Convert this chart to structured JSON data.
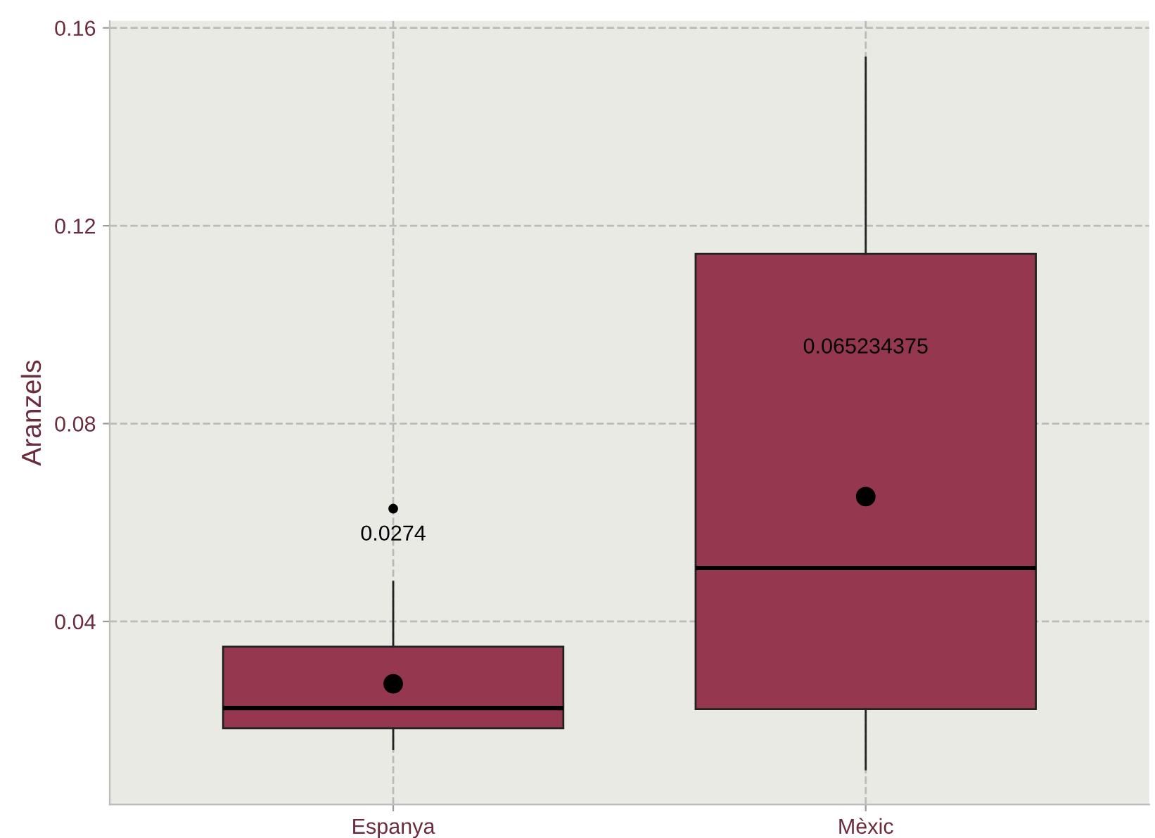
{
  "chart_data": {
    "type": "box",
    "ylabel": "Aranzels",
    "categories": [
      "Espanya",
      "Mèxic"
    ],
    "series": [
      {
        "color": "#963750",
        "boxes": [
          {
            "low": 0.0142,
            "q1": 0.0184,
            "median": 0.0225,
            "q3": 0.0349,
            "high": 0.048,
            "mean": 0.0274,
            "outliers": [
              0.0628
            ]
          },
          {
            "low": 0.0101,
            "q1": 0.0223,
            "median": 0.0508,
            "q3": 0.1143,
            "high": 0.154,
            "mean": 0.065234375
          }
        ]
      }
    ],
    "annotations": [
      "0.0274",
      "0.065234375"
    ],
    "ylim": [
      0.003,
      0.1614
    ],
    "yticks": [
      {
        "value": 0.04,
        "label": "0.04"
      },
      {
        "value": 0.08,
        "label": "0.08"
      },
      {
        "value": 0.12,
        "label": "0.12"
      },
      {
        "value": 0.16,
        "label": "0.16"
      }
    ],
    "grid": true,
    "legend": false
  }
}
